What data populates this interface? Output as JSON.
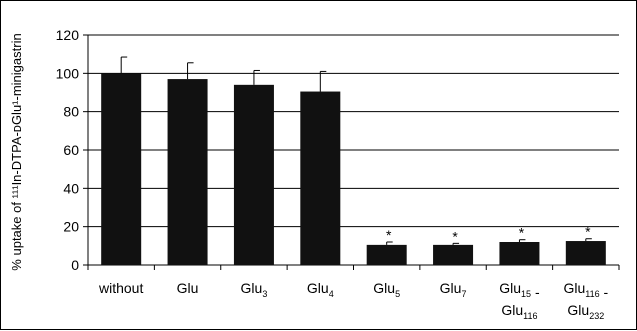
{
  "chart_data": {
    "type": "bar",
    "ylabel": "% uptake of ¹¹¹In-DTPA-ᴅGlu¹-minigastrin",
    "ylim": [
      0,
      120
    ],
    "yticks": [
      0,
      20,
      40,
      60,
      80,
      100,
      120
    ],
    "grid": true,
    "categories": [
      {
        "line1": [
          [
            "Glu",
            ""
          ],
          [
            "without",
            ""
          ]
        ],
        "line2": []
      },
      {
        "line1": [
          [
            "Glu",
            ""
          ]
        ],
        "line2": []
      },
      {
        "line1": [
          [
            "Glu",
            ""
          ],
          [
            "",
            "3"
          ]
        ],
        "line2": []
      },
      {
        "line1": [
          [
            "Glu",
            ""
          ],
          [
            "",
            "4"
          ]
        ],
        "line2": []
      },
      {
        "line1": [
          [
            "Glu",
            ""
          ],
          [
            "",
            "5"
          ]
        ],
        "line2": []
      },
      {
        "line1": [
          [
            "Glu",
            ""
          ],
          [
            "",
            "7"
          ]
        ],
        "line2": []
      },
      {
        "line1": [
          [
            "Glu",
            ""
          ],
          [
            "",
            "15"
          ],
          [
            " -",
            ""
          ]
        ],
        "line2": [
          [
            "Glu",
            ""
          ],
          [
            "",
            "116"
          ]
        ]
      },
      {
        "line1": [
          [
            "Glu",
            ""
          ],
          [
            "",
            "116"
          ],
          [
            " -",
            ""
          ]
        ],
        "line2": [
          [
            "Glu",
            ""
          ],
          [
            "",
            "232"
          ]
        ]
      }
    ],
    "category_text": [
      "without",
      "Glu",
      "Glu3",
      "Glu4",
      "Glu5",
      "Glu7",
      "Glu15 - Glu116",
      "Glu116 - Glu232"
    ],
    "values": [
      100,
      97,
      94,
      90.5,
      10.5,
      10.5,
      12,
      12.5
    ],
    "errors": [
      8.5,
      8.5,
      7.5,
      10.5,
      1.5,
      0.8,
      1.2,
      1.2
    ],
    "annotations": [
      "",
      "",
      "",
      "",
      "*",
      "*",
      "*",
      "*"
    ],
    "bar_color": "#111111",
    "grid_color": "#000000"
  }
}
